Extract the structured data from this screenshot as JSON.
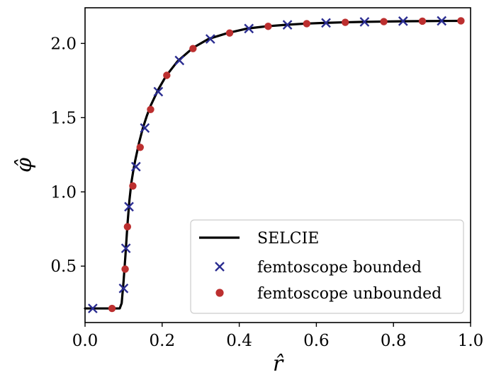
{
  "chart_data": {
    "type": "line",
    "xlabel": "r̂",
    "ylabel": "φ̂",
    "xlim": [
      0.0,
      1.0
    ],
    "ylim": [
      0.12,
      2.24
    ],
    "x_ticks": [
      0.0,
      0.2,
      0.4,
      0.6,
      0.8,
      1.0
    ],
    "x_tick_labels": [
      "0.0",
      "0.2",
      "0.4",
      "0.6",
      "0.8",
      "1.0"
    ],
    "y_ticks": [
      0.5,
      1.0,
      1.5,
      2.0
    ],
    "y_tick_labels": [
      "0.5",
      "1.0",
      "1.5",
      "2.0"
    ],
    "grid": false,
    "legend_position": "lower-right",
    "series": [
      {
        "name": "SELCIE",
        "kind": "line",
        "color": "#000000",
        "x": [
          0.0,
          0.05,
          0.09,
          0.095,
          0.1,
          0.105,
          0.11,
          0.115,
          0.12,
          0.125,
          0.13,
          0.14,
          0.15,
          0.16,
          0.17,
          0.19,
          0.21,
          0.24,
          0.28,
          0.32,
          0.37,
          0.42,
          0.47,
          0.52,
          0.57,
          0.62,
          0.67,
          0.72,
          0.77,
          0.82,
          0.87,
          0.92,
          0.975
        ],
        "y": [
          0.215,
          0.215,
          0.215,
          0.25,
          0.4,
          0.58,
          0.78,
          0.94,
          1.06,
          1.14,
          1.21,
          1.33,
          1.43,
          1.51,
          1.58,
          1.69,
          1.78,
          1.88,
          1.97,
          2.03,
          2.07,
          2.1,
          2.115,
          2.125,
          2.133,
          2.138,
          2.142,
          2.145,
          2.147,
          2.149,
          2.15,
          2.151,
          2.152
        ]
      },
      {
        "name": "femtoscope bounded",
        "kind": "marker",
        "marker": "x",
        "color": "#2b2d91",
        "x": [
          0.02,
          0.1,
          0.106,
          0.114,
          0.132,
          0.155,
          0.19,
          0.245,
          0.325,
          0.425,
          0.525,
          0.625,
          0.725,
          0.825,
          0.925
        ],
        "y": [
          0.215,
          0.35,
          0.62,
          0.9,
          1.17,
          1.43,
          1.675,
          1.885,
          2.03,
          2.1,
          2.125,
          2.138,
          2.145,
          2.15,
          2.152
        ]
      },
      {
        "name": "femtoscope unbounded",
        "kind": "marker",
        "marker": "o",
        "color": "#bc2f2f",
        "x": [
          0.07,
          0.104,
          0.11,
          0.124,
          0.143,
          0.17,
          0.212,
          0.28,
          0.375,
          0.475,
          0.575,
          0.675,
          0.775,
          0.875,
          0.975
        ],
        "y": [
          0.215,
          0.48,
          0.765,
          1.04,
          1.3,
          1.555,
          1.785,
          1.965,
          2.07,
          2.115,
          2.133,
          2.142,
          2.147,
          2.15,
          2.152
        ]
      }
    ]
  }
}
